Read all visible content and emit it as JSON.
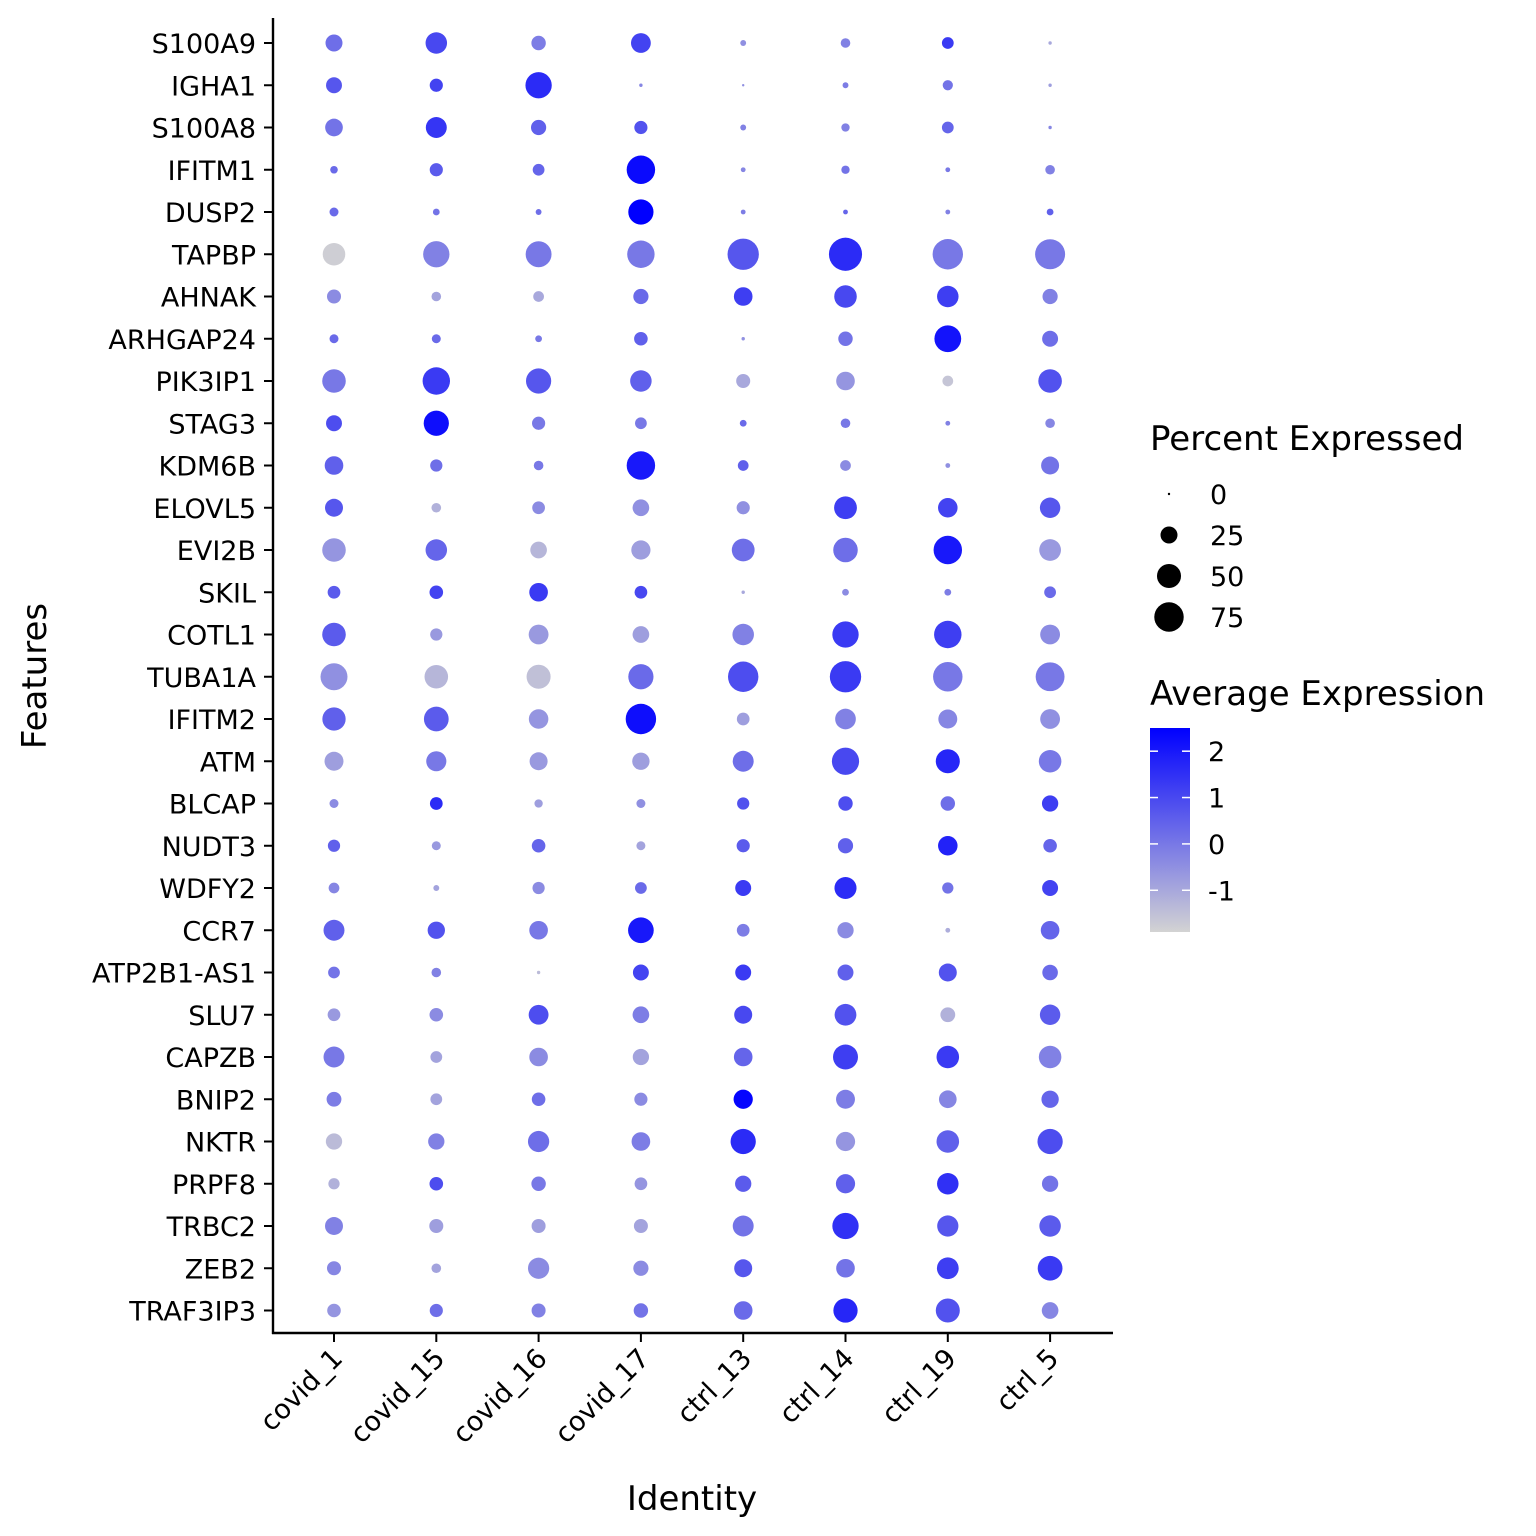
{
  "chart_data": {
    "type": "dotplot",
    "xlabel": "Identity",
    "ylabel": "Features",
    "categories": [
      "covid_1",
      "covid_15",
      "covid_16",
      "covid_17",
      "ctrl_13",
      "ctrl_14",
      "ctrl_19",
      "ctrl_5"
    ],
    "features": [
      "S100A9",
      "IGHA1",
      "S100A8",
      "IFITM1",
      "DUSP2",
      "TAPBP",
      "AHNAK",
      "ARHGAP24",
      "PIK3IP1",
      "STAG3",
      "KDM6B",
      "ELOVL5",
      "EVI2B",
      "SKIL",
      "COTL1",
      "TUBA1A",
      "IFITM2",
      "ATM",
      "BLCAP",
      "NUDT3",
      "WDFY2",
      "CCR7",
      "ATP2B1-AS1",
      "SLU7",
      "CAPZB",
      "BNIP2",
      "NKTR",
      "PRPF8",
      "TRBC2",
      "ZEB2",
      "TRAF3IP3"
    ],
    "percent_expressed": [
      [
        25,
        40,
        18,
        34,
        3,
        8,
        12,
        1
      ],
      [
        22,
        15,
        60,
        1,
        0.5,
        3,
        9,
        1
      ],
      [
        27,
        38,
        20,
        15,
        3,
        6,
        12,
        1
      ],
      [
        5,
        15,
        12,
        70,
        2,
        6,
        2,
        8
      ],
      [
        7,
        4,
        3,
        55,
        2,
        2,
        2,
        4
      ],
      [
        44,
        60,
        58,
        65,
        85,
        95,
        80,
        78
      ],
      [
        17,
        8,
        10,
        20,
        30,
        44,
        40,
        20
      ],
      [
        7,
        7,
        4,
        16,
        1,
        18,
        62,
        22
      ],
      [
        48,
        65,
        55,
        40,
        17,
        30,
        10,
        48
      ],
      [
        22,
        55,
        15,
        12,
        4,
        8,
        2,
        8
      ],
      [
        30,
        13,
        8,
        70,
        10,
        10,
        2,
        28
      ],
      [
        28,
        8,
        14,
        24,
        15,
        45,
        33,
        36
      ],
      [
        48,
        40,
        24,
        32,
        45,
        52,
        70,
        41
      ],
      [
        14,
        16,
        30,
        14,
        1,
        4,
        4,
        12
      ],
      [
        48,
        13,
        34,
        24,
        40,
        60,
        65,
        34
      ],
      [
        63,
        48,
        50,
        55,
        80,
        85,
        75,
        72
      ],
      [
        47,
        53,
        33,
        80,
        14,
        37,
        31,
        34
      ],
      [
        31,
        35,
        28,
        26,
        38,
        64,
        50,
        44
      ],
      [
        7,
        14,
        6,
        7,
        13,
        18,
        18,
        23
      ],
      [
        13,
        7,
        16,
        7,
        15,
        20,
        33,
        16
      ],
      [
        10,
        3,
        13,
        12,
        22,
        42,
        11,
        22
      ],
      [
        38,
        26,
        30,
        57,
        14,
        23,
        2,
        30
      ],
      [
        12,
        8,
        1,
        22,
        22,
        22,
        28,
        21
      ],
      [
        14,
        16,
        34,
        24,
        28,
        41,
        19,
        36
      ],
      [
        38,
        12,
        30,
        23,
        30,
        54,
        44,
        44
      ],
      [
        19,
        12,
        16,
        15,
        32,
        31,
        27,
        26
      ],
      [
        23,
        23,
        39,
        30,
        55,
        32,
        44,
        55
      ],
      [
        11,
        16,
        18,
        14,
        23,
        32,
        40,
        23
      ],
      [
        28,
        17,
        17,
        17,
        38,
        60,
        39,
        40
      ],
      [
        17,
        8,
        39,
        20,
        28,
        30,
        41,
        53
      ],
      [
        16,
        15,
        17,
        18,
        30,
        51,
        50,
        24
      ]
    ],
    "average_expression": [
      [
        0.2,
        1.0,
        -0.1,
        1.1,
        -0.5,
        -0.2,
        1.3,
        -1.0
      ],
      [
        0.7,
        1.1,
        1.6,
        -0.3,
        -0.5,
        -0.1,
        0.1,
        -0.8
      ],
      [
        0.1,
        1.4,
        0.5,
        0.8,
        -0.2,
        -0.2,
        0.4,
        -0.3
      ],
      [
        0.3,
        0.6,
        0.4,
        2.3,
        -0.3,
        0.1,
        0.0,
        -0.2
      ],
      [
        0.3,
        0.1,
        0.2,
        2.5,
        -0.1,
        0.4,
        -0.2,
        0.5
      ],
      [
        -1.8,
        -0.2,
        0.0,
        0.0,
        0.7,
        1.6,
        0.0,
        0.0
      ],
      [
        -0.4,
        -0.9,
        -1.0,
        0.3,
        1.2,
        1.0,
        1.2,
        -0.2
      ],
      [
        0.3,
        0.3,
        0.0,
        0.5,
        -0.5,
        0.1,
        2.1,
        0.2
      ],
      [
        0.0,
        1.3,
        0.7,
        0.5,
        -1.0,
        -0.6,
        -1.6,
        0.8
      ],
      [
        0.9,
        2.2,
        0.0,
        0.0,
        0.3,
        0.0,
        -0.2,
        -0.3
      ],
      [
        0.5,
        0.2,
        0.0,
        2.0,
        0.5,
        -0.4,
        -0.5,
        0.1
      ],
      [
        0.7,
        -1.2,
        -0.4,
        -0.5,
        -0.5,
        1.2,
        1.1,
        0.7
      ],
      [
        -0.6,
        0.4,
        -1.3,
        -0.8,
        0.2,
        0.2,
        2.0,
        -0.7
      ],
      [
        0.6,
        1.1,
        1.3,
        1.0,
        -1.0,
        -0.4,
        -0.1,
        0.3
      ],
      [
        0.6,
        -0.7,
        -0.7,
        -0.8,
        -0.2,
        1.3,
        1.2,
        -0.4
      ],
      [
        -0.5,
        -1.3,
        -1.5,
        0.3,
        0.9,
        1.3,
        0.0,
        0.0
      ],
      [
        0.5,
        0.6,
        -0.6,
        2.2,
        -0.8,
        -0.2,
        -0.3,
        -0.5
      ],
      [
        -0.8,
        0.0,
        -0.7,
        -0.8,
        0.2,
        1.0,
        1.7,
        0.0
      ],
      [
        -0.4,
        1.6,
        -0.8,
        -0.5,
        0.8,
        0.9,
        0.2,
        1.2
      ],
      [
        0.5,
        -0.7,
        0.4,
        -0.9,
        0.6,
        0.5,
        1.8,
        0.4
      ],
      [
        -0.3,
        -0.9,
        -0.4,
        0.3,
        1.3,
        1.6,
        0.1,
        1.1
      ],
      [
        0.5,
        0.8,
        0.0,
        2.0,
        -0.1,
        -0.4,
        -1.1,
        0.4
      ],
      [
        0.1,
        -0.2,
        -1.4,
        1.1,
        1.3,
        0.5,
        0.8,
        0.3
      ],
      [
        -0.7,
        -0.4,
        0.9,
        -0.1,
        1.0,
        0.8,
        -1.2,
        0.6
      ],
      [
        0.0,
        -0.9,
        -0.4,
        -0.9,
        0.4,
        1.2,
        1.3,
        -0.2
      ],
      [
        -0.1,
        -0.9,
        0.2,
        -0.4,
        2.4,
        -0.1,
        -0.3,
        0.4
      ],
      [
        -1.4,
        -0.2,
        0.2,
        -0.1,
        1.6,
        -0.6,
        0.5,
        0.9
      ],
      [
        -1.2,
        0.9,
        0.0,
        -0.6,
        0.6,
        0.5,
        1.5,
        0.1
      ],
      [
        -0.2,
        -0.8,
        -0.8,
        -0.9,
        0.1,
        1.5,
        0.7,
        0.6
      ],
      [
        -0.3,
        -0.9,
        -0.4,
        -0.4,
        0.7,
        0.1,
        1.2,
        1.3
      ],
      [
        -0.6,
        0.2,
        -0.2,
        0.1,
        0.3,
        1.7,
        0.8,
        -0.3
      ]
    ],
    "size_legend": {
      "title": "Percent Expressed",
      "breaks": [
        0,
        25,
        50,
        75
      ],
      "labels": [
        "0",
        "25",
        "50",
        "75"
      ]
    },
    "color_legend": {
      "title": "Average Expression",
      "range": [
        -1.9,
        2.5
      ],
      "breaks": [
        2,
        1,
        0,
        -1
      ],
      "labels": [
        "2",
        "1",
        "0",
        "-1"
      ],
      "low_color": "#d3d3d3",
      "high_color": "#0000ff"
    }
  }
}
